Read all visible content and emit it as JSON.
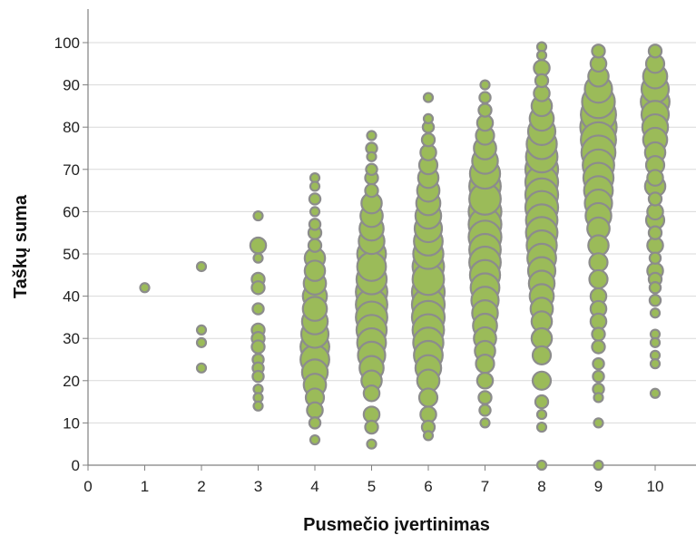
{
  "chart_data": {
    "type": "scatter",
    "subtype": "bubble",
    "title": "",
    "xlabel": "Pusmečio įvertinimas",
    "ylabel": "Taškų suma",
    "xlim": [
      0,
      10
    ],
    "ylim": [
      0,
      100
    ],
    "xticks": [
      "0",
      "1",
      "2",
      "3",
      "4",
      "5",
      "6",
      "7",
      "8",
      "9",
      "10"
    ],
    "yticks": [
      "0",
      "10",
      "20",
      "30",
      "40",
      "50",
      "60",
      "70",
      "80",
      "90",
      "100"
    ],
    "grid": "horizontal",
    "legend": "none",
    "colors": {
      "bubble_fill": "#9bbb59",
      "bubble_stroke": "#8c8c8c",
      "grid": "#d9d9d9",
      "axis": "#808080"
    },
    "size_unit": "relative bubble size",
    "series": [
      {
        "points": [
          {
            "x": 1,
            "y": 42,
            "size": 1
          },
          {
            "x": 2,
            "y": 47,
            "size": 1
          },
          {
            "x": 2,
            "y": 32,
            "size": 1
          },
          {
            "x": 2,
            "y": 29,
            "size": 1
          },
          {
            "x": 2,
            "y": 23,
            "size": 1
          },
          {
            "x": 3,
            "y": 59,
            "size": 1
          },
          {
            "x": 3,
            "y": 52,
            "size": 3
          },
          {
            "x": 3,
            "y": 49,
            "size": 1
          },
          {
            "x": 3,
            "y": 44,
            "size": 2
          },
          {
            "x": 3,
            "y": 42,
            "size": 2
          },
          {
            "x": 3,
            "y": 37,
            "size": 1.5
          },
          {
            "x": 3,
            "y": 32,
            "size": 2
          },
          {
            "x": 3,
            "y": 30,
            "size": 2
          },
          {
            "x": 3,
            "y": 28,
            "size": 2
          },
          {
            "x": 3,
            "y": 25,
            "size": 1.5
          },
          {
            "x": 3,
            "y": 23,
            "size": 1.5
          },
          {
            "x": 3,
            "y": 21,
            "size": 1.5
          },
          {
            "x": 3,
            "y": 18,
            "size": 1
          },
          {
            "x": 3,
            "y": 16,
            "size": 1
          },
          {
            "x": 3,
            "y": 14,
            "size": 1
          },
          {
            "x": 4,
            "y": 68,
            "size": 1
          },
          {
            "x": 4,
            "y": 66,
            "size": 1
          },
          {
            "x": 4,
            "y": 63,
            "size": 1.5
          },
          {
            "x": 4,
            "y": 60,
            "size": 1
          },
          {
            "x": 4,
            "y": 57,
            "size": 1.5
          },
          {
            "x": 4,
            "y": 55,
            "size": 2
          },
          {
            "x": 4,
            "y": 52,
            "size": 2
          },
          {
            "x": 4,
            "y": 49,
            "size": 5
          },
          {
            "x": 4,
            "y": 46,
            "size": 5
          },
          {
            "x": 4,
            "y": 43,
            "size": 6
          },
          {
            "x": 4,
            "y": 40,
            "size": 7
          },
          {
            "x": 4,
            "y": 37,
            "size": 7
          },
          {
            "x": 4,
            "y": 34,
            "size": 8
          },
          {
            "x": 4,
            "y": 31,
            "size": 9
          },
          {
            "x": 4,
            "y": 28,
            "size": 10
          },
          {
            "x": 4,
            "y": 25,
            "size": 10
          },
          {
            "x": 4,
            "y": 22,
            "size": 8
          },
          {
            "x": 4,
            "y": 19,
            "size": 6
          },
          {
            "x": 4,
            "y": 16,
            "size": 4
          },
          {
            "x": 4,
            "y": 13,
            "size": 3
          },
          {
            "x": 4,
            "y": 10,
            "size": 1.5
          },
          {
            "x": 4,
            "y": 6,
            "size": 1
          },
          {
            "x": 5,
            "y": 78,
            "size": 1
          },
          {
            "x": 5,
            "y": 75,
            "size": 1.5
          },
          {
            "x": 5,
            "y": 73,
            "size": 1
          },
          {
            "x": 5,
            "y": 70,
            "size": 1.5
          },
          {
            "x": 5,
            "y": 68,
            "size": 2
          },
          {
            "x": 5,
            "y": 65,
            "size": 2
          },
          {
            "x": 5,
            "y": 62,
            "size": 5
          },
          {
            "x": 5,
            "y": 59,
            "size": 6
          },
          {
            "x": 5,
            "y": 56,
            "size": 7
          },
          {
            "x": 5,
            "y": 53,
            "size": 8
          },
          {
            "x": 5,
            "y": 50,
            "size": 10
          },
          {
            "x": 5,
            "y": 47,
            "size": 10
          },
          {
            "x": 5,
            "y": 44,
            "size": 11
          },
          {
            "x": 5,
            "y": 41,
            "size": 12
          },
          {
            "x": 5,
            "y": 38,
            "size": 12
          },
          {
            "x": 5,
            "y": 35,
            "size": 12
          },
          {
            "x": 5,
            "y": 32,
            "size": 11
          },
          {
            "x": 5,
            "y": 29,
            "size": 10
          },
          {
            "x": 5,
            "y": 26,
            "size": 9
          },
          {
            "x": 5,
            "y": 23,
            "size": 7
          },
          {
            "x": 5,
            "y": 20,
            "size": 5
          },
          {
            "x": 5,
            "y": 17,
            "size": 3
          },
          {
            "x": 5,
            "y": 12,
            "size": 3
          },
          {
            "x": 5,
            "y": 9,
            "size": 2
          },
          {
            "x": 5,
            "y": 5,
            "size": 1
          },
          {
            "x": 6,
            "y": 87,
            "size": 1
          },
          {
            "x": 6,
            "y": 82,
            "size": 1
          },
          {
            "x": 6,
            "y": 80,
            "size": 1.5
          },
          {
            "x": 6,
            "y": 77,
            "size": 2
          },
          {
            "x": 6,
            "y": 74,
            "size": 3
          },
          {
            "x": 6,
            "y": 71,
            "size": 4
          },
          {
            "x": 6,
            "y": 68,
            "size": 5
          },
          {
            "x": 6,
            "y": 65,
            "size": 6
          },
          {
            "x": 6,
            "y": 62,
            "size": 7
          },
          {
            "x": 6,
            "y": 59,
            "size": 8
          },
          {
            "x": 6,
            "y": 56,
            "size": 9
          },
          {
            "x": 6,
            "y": 53,
            "size": 10
          },
          {
            "x": 6,
            "y": 50,
            "size": 11
          },
          {
            "x": 6,
            "y": 47,
            "size": 12
          },
          {
            "x": 6,
            "y": 44,
            "size": 12
          },
          {
            "x": 6,
            "y": 41,
            "size": 13
          },
          {
            "x": 6,
            "y": 38,
            "size": 13
          },
          {
            "x": 6,
            "y": 35,
            "size": 13
          },
          {
            "x": 6,
            "y": 32,
            "size": 12
          },
          {
            "x": 6,
            "y": 29,
            "size": 11
          },
          {
            "x": 6,
            "y": 26,
            "size": 10
          },
          {
            "x": 6,
            "y": 23,
            "size": 8
          },
          {
            "x": 6,
            "y": 20,
            "size": 6
          },
          {
            "x": 6,
            "y": 16,
            "size": 4
          },
          {
            "x": 6,
            "y": 12,
            "size": 3
          },
          {
            "x": 6,
            "y": 9,
            "size": 2
          },
          {
            "x": 6,
            "y": 7,
            "size": 1
          },
          {
            "x": 7,
            "y": 90,
            "size": 1
          },
          {
            "x": 7,
            "y": 87,
            "size": 1.5
          },
          {
            "x": 7,
            "y": 84,
            "size": 2
          },
          {
            "x": 7,
            "y": 81,
            "size": 3
          },
          {
            "x": 7,
            "y": 78,
            "size": 4
          },
          {
            "x": 7,
            "y": 75,
            "size": 6
          },
          {
            "x": 7,
            "y": 72,
            "size": 8
          },
          {
            "x": 7,
            "y": 69,
            "size": 11
          },
          {
            "x": 7,
            "y": 66,
            "size": 12
          },
          {
            "x": 7,
            "y": 63,
            "size": 12
          },
          {
            "x": 7,
            "y": 60,
            "size": 13
          },
          {
            "x": 7,
            "y": 57,
            "size": 13
          },
          {
            "x": 7,
            "y": 54,
            "size": 13
          },
          {
            "x": 7,
            "y": 51,
            "size": 12
          },
          {
            "x": 7,
            "y": 48,
            "size": 12
          },
          {
            "x": 7,
            "y": 45,
            "size": 11
          },
          {
            "x": 7,
            "y": 42,
            "size": 10
          },
          {
            "x": 7,
            "y": 39,
            "size": 9
          },
          {
            "x": 7,
            "y": 36,
            "size": 8
          },
          {
            "x": 7,
            "y": 33,
            "size": 7
          },
          {
            "x": 7,
            "y": 30,
            "size": 6
          },
          {
            "x": 7,
            "y": 27,
            "size": 5
          },
          {
            "x": 7,
            "y": 24,
            "size": 4
          },
          {
            "x": 7,
            "y": 20,
            "size": 3
          },
          {
            "x": 7,
            "y": 16,
            "size": 2
          },
          {
            "x": 7,
            "y": 13,
            "size": 1.5
          },
          {
            "x": 7,
            "y": 10,
            "size": 1
          },
          {
            "x": 8,
            "y": 99,
            "size": 1
          },
          {
            "x": 8,
            "y": 97,
            "size": 1
          },
          {
            "x": 8,
            "y": 94,
            "size": 3
          },
          {
            "x": 8,
            "y": 91,
            "size": 2
          },
          {
            "x": 8,
            "y": 88,
            "size": 3
          },
          {
            "x": 8,
            "y": 85,
            "size": 5
          },
          {
            "x": 8,
            "y": 82,
            "size": 7
          },
          {
            "x": 8,
            "y": 79,
            "size": 9
          },
          {
            "x": 8,
            "y": 76,
            "size": 11
          },
          {
            "x": 8,
            "y": 73,
            "size": 12
          },
          {
            "x": 8,
            "y": 70,
            "size": 13
          },
          {
            "x": 8,
            "y": 67,
            "size": 13
          },
          {
            "x": 8,
            "y": 64,
            "size": 13
          },
          {
            "x": 8,
            "y": 61,
            "size": 13
          },
          {
            "x": 8,
            "y": 58,
            "size": 12
          },
          {
            "x": 8,
            "y": 55,
            "size": 12
          },
          {
            "x": 8,
            "y": 52,
            "size": 11
          },
          {
            "x": 8,
            "y": 49,
            "size": 10
          },
          {
            "x": 8,
            "y": 46,
            "size": 9
          },
          {
            "x": 8,
            "y": 43,
            "size": 8
          },
          {
            "x": 8,
            "y": 40,
            "size": 7
          },
          {
            "x": 8,
            "y": 37,
            "size": 6
          },
          {
            "x": 8,
            "y": 34,
            "size": 5
          },
          {
            "x": 8,
            "y": 30,
            "size": 5
          },
          {
            "x": 8,
            "y": 26,
            "size": 4
          },
          {
            "x": 8,
            "y": 20,
            "size": 4
          },
          {
            "x": 8,
            "y": 15,
            "size": 2
          },
          {
            "x": 8,
            "y": 12,
            "size": 1
          },
          {
            "x": 8,
            "y": 9,
            "size": 1
          },
          {
            "x": 8,
            "y": 0,
            "size": 1
          },
          {
            "x": 9,
            "y": 98,
            "size": 2
          },
          {
            "x": 9,
            "y": 95,
            "size": 3
          },
          {
            "x": 9,
            "y": 92,
            "size": 5
          },
          {
            "x": 9,
            "y": 89,
            "size": 9
          },
          {
            "x": 9,
            "y": 86,
            "size": 13
          },
          {
            "x": 9,
            "y": 83,
            "size": 15
          },
          {
            "x": 9,
            "y": 80,
            "size": 16
          },
          {
            "x": 9,
            "y": 77,
            "size": 15
          },
          {
            "x": 9,
            "y": 74,
            "size": 14
          },
          {
            "x": 9,
            "y": 71,
            "size": 12
          },
          {
            "x": 9,
            "y": 68,
            "size": 11
          },
          {
            "x": 9,
            "y": 65,
            "size": 10
          },
          {
            "x": 9,
            "y": 62,
            "size": 9
          },
          {
            "x": 9,
            "y": 59,
            "size": 8
          },
          {
            "x": 9,
            "y": 56,
            "size": 6
          },
          {
            "x": 9,
            "y": 52,
            "size": 5
          },
          {
            "x": 9,
            "y": 48,
            "size": 4
          },
          {
            "x": 9,
            "y": 44,
            "size": 4
          },
          {
            "x": 9,
            "y": 40,
            "size": 3
          },
          {
            "x": 9,
            "y": 37,
            "size": 3
          },
          {
            "x": 9,
            "y": 34,
            "size": 3
          },
          {
            "x": 9,
            "y": 31,
            "size": 2
          },
          {
            "x": 9,
            "y": 28,
            "size": 2
          },
          {
            "x": 9,
            "y": 24,
            "size": 1.5
          },
          {
            "x": 9,
            "y": 21,
            "size": 1.5
          },
          {
            "x": 9,
            "y": 18,
            "size": 1.5
          },
          {
            "x": 9,
            "y": 16,
            "size": 1
          },
          {
            "x": 9,
            "y": 10,
            "size": 1
          },
          {
            "x": 9,
            "y": 0,
            "size": 1
          },
          {
            "x": 10,
            "y": 98,
            "size": 2
          },
          {
            "x": 10,
            "y": 95,
            "size": 4
          },
          {
            "x": 10,
            "y": 92,
            "size": 7
          },
          {
            "x": 10,
            "y": 89,
            "size": 9
          },
          {
            "x": 10,
            "y": 86,
            "size": 10
          },
          {
            "x": 10,
            "y": 83,
            "size": 9
          },
          {
            "x": 10,
            "y": 80,
            "size": 8
          },
          {
            "x": 10,
            "y": 77,
            "size": 7
          },
          {
            "x": 10,
            "y": 74,
            "size": 5
          },
          {
            "x": 10,
            "y": 71,
            "size": 4
          },
          {
            "x": 10,
            "y": 68,
            "size": 3
          },
          {
            "x": 10,
            "y": 66,
            "size": 5
          },
          {
            "x": 10,
            "y": 63,
            "size": 2
          },
          {
            "x": 10,
            "y": 60,
            "size": 3
          },
          {
            "x": 10,
            "y": 58,
            "size": 4
          },
          {
            "x": 10,
            "y": 55,
            "size": 2
          },
          {
            "x": 10,
            "y": 52,
            "size": 3
          },
          {
            "x": 10,
            "y": 49,
            "size": 1.5
          },
          {
            "x": 10,
            "y": 46,
            "size": 3
          },
          {
            "x": 10,
            "y": 44,
            "size": 2
          },
          {
            "x": 10,
            "y": 42,
            "size": 1.5
          },
          {
            "x": 10,
            "y": 39,
            "size": 1.5
          },
          {
            "x": 10,
            "y": 36,
            "size": 1
          },
          {
            "x": 10,
            "y": 31,
            "size": 1
          },
          {
            "x": 10,
            "y": 29,
            "size": 1
          },
          {
            "x": 10,
            "y": 26,
            "size": 1
          },
          {
            "x": 10,
            "y": 24,
            "size": 1
          },
          {
            "x": 10,
            "y": 17,
            "size": 1
          }
        ]
      }
    ]
  }
}
